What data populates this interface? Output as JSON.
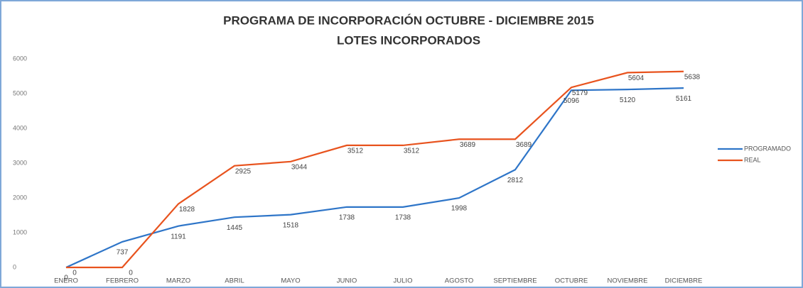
{
  "chart_data": {
    "type": "line",
    "title": "PROGRAMA DE INCORPORACIÓN OCTUBRE - DICIEMBRE 2015",
    "subtitle": "LOTES INCORPORADOS",
    "categories": [
      "ENERO",
      "FEBRERO",
      "MARZO",
      "ABRIL",
      "MAYO",
      "JUNIO",
      "JULIO",
      "AGOSTO",
      "SEPTIEMBRE",
      "OCTUBRE",
      "NOVIEMBRE",
      "DICIEMBRE"
    ],
    "series": [
      {
        "name": "PROGRAMADO",
        "color": "#2e75c8",
        "values": [
          0,
          737,
          1191,
          1445,
          1518,
          1738,
          1738,
          1998,
          2812,
          5096,
          5120,
          5161
        ]
      },
      {
        "name": "REAL",
        "color": "#e8531e",
        "values": [
          0,
          0,
          1828,
          2925,
          3044,
          3512,
          3512,
          3689,
          3689,
          5179,
          5604,
          5638
        ]
      }
    ],
    "ylim": [
      0,
      6000
    ],
    "yticks": [
      0,
      1000,
      2000,
      3000,
      4000,
      5000,
      6000
    ],
    "grid": false,
    "legend": "right"
  }
}
